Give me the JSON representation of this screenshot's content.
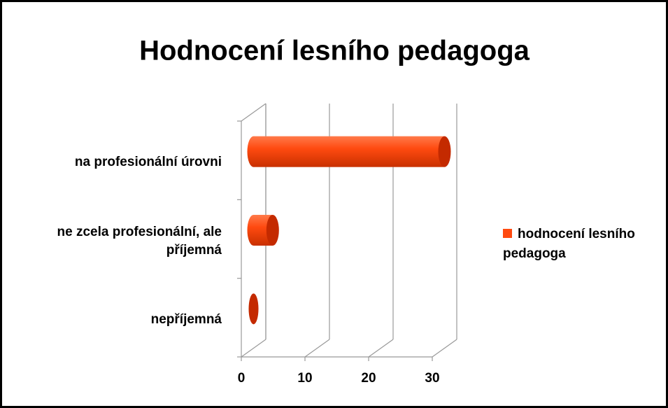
{
  "chart_data": {
    "type": "bar",
    "orientation": "horizontal",
    "title": "Hodnocení lesního pedagoga",
    "categories": [
      "nepříjemná",
      "ne zcela profesionální, ale příjemná",
      "na profesionální úrovni"
    ],
    "series": [
      {
        "name": "hodnocení lesního pedagoga",
        "color": "#ff4a10",
        "values": [
          0,
          3,
          30
        ]
      }
    ],
    "xlim": [
      0,
      30
    ],
    "xticks": [
      0,
      10,
      20,
      30
    ],
    "grid": true,
    "legend": "right"
  }
}
